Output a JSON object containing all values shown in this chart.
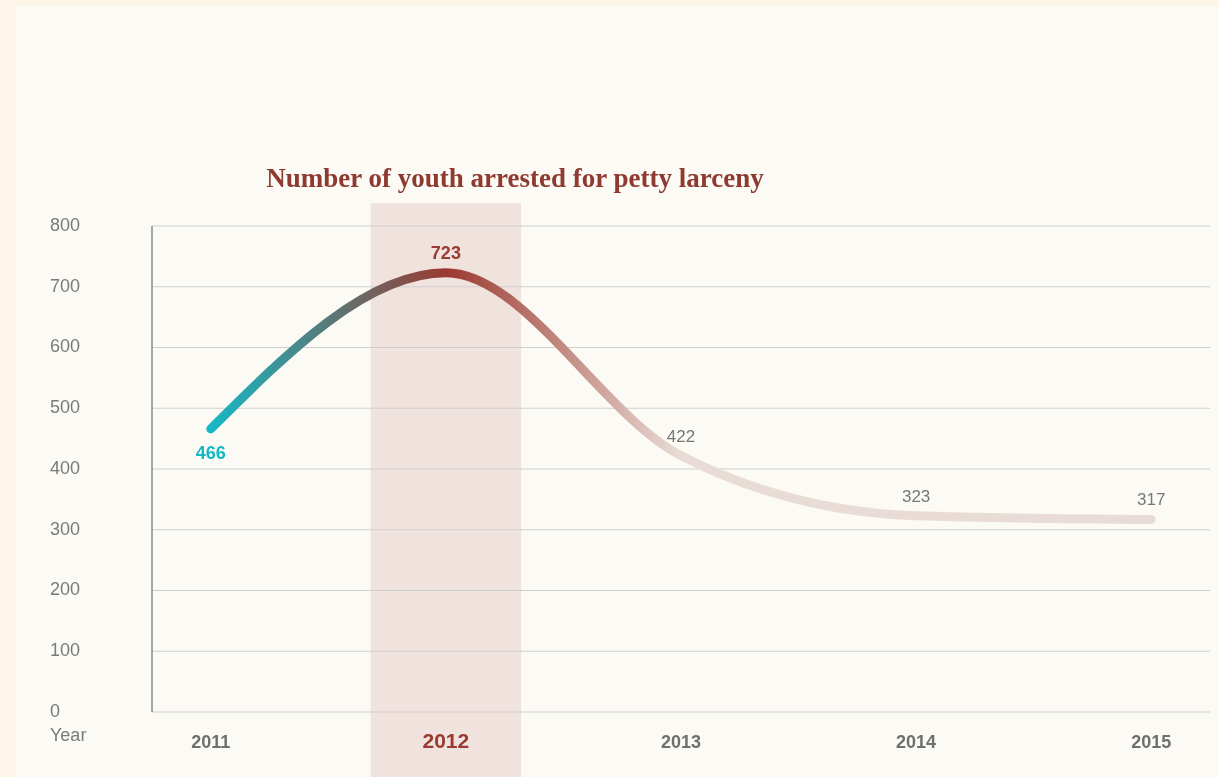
{
  "chart_data": {
    "type": "line",
    "title": "Number of youth arrested for petty larceny",
    "xlabel": "Year",
    "categories": [
      "2011",
      "2012",
      "2013",
      "2014",
      "2015"
    ],
    "series": [
      {
        "values": [
          466,
          723,
          422,
          323,
          317
        ],
        "colors": [
          "#16b8c4",
          "#9b3a30",
          "#e9dcd6",
          "#e9dcd6",
          "#e9dcd6"
        ]
      }
    ],
    "ylim": [
      0,
      800
    ],
    "yticks": [
      0,
      100,
      200,
      300,
      400,
      500,
      600,
      700,
      800
    ],
    "grid": "y",
    "marker": "none",
    "line_style": "solid",
    "data_labels": true,
    "bands": [
      {
        "axis": "x",
        "from": "2012",
        "to": "2012",
        "color": "#f0e2dd"
      }
    ]
  }
}
